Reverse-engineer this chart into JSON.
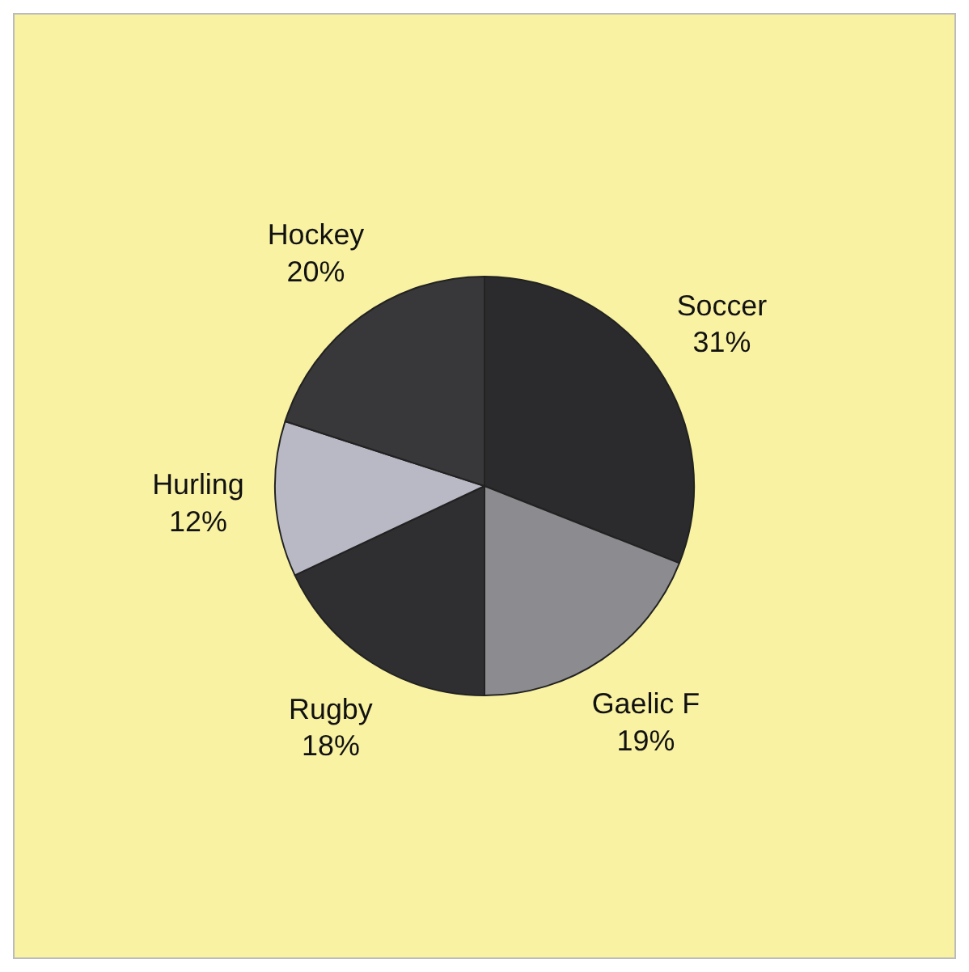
{
  "chart_data": {
    "type": "pie",
    "categories": [
      "Soccer",
      "Gaelic F",
      "Rugby",
      "Hurling",
      "Hockey"
    ],
    "values": [
      31,
      19,
      18,
      12,
      20
    ],
    "value_labels": [
      "31%",
      "19%",
      "18%",
      "12%",
      "20%"
    ],
    "colors": [
      "#2b2b2d",
      "#8c8c90",
      "#2f2f31",
      "#b9b9c6",
      "#38383a"
    ]
  }
}
